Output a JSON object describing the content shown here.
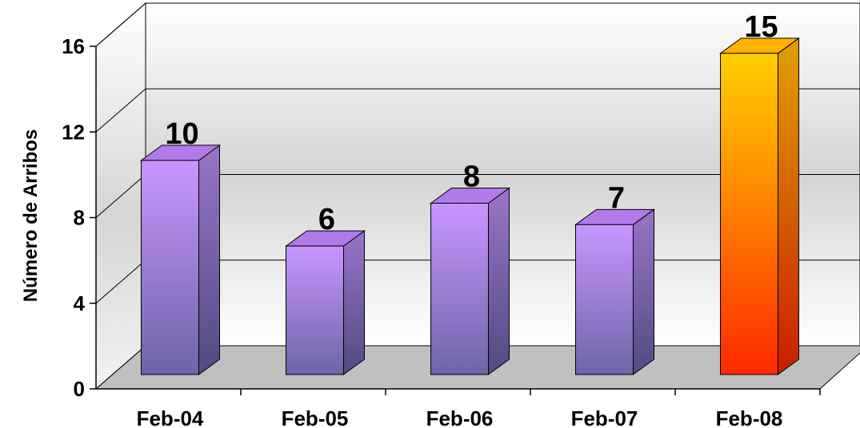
{
  "chart_data": {
    "type": "bar",
    "title": "",
    "xlabel": "",
    "ylabel": "Número de Arribos",
    "categories": [
      "Feb-04",
      "Feb-05",
      "Feb-06",
      "Feb-07",
      "Feb-08"
    ],
    "values": [
      10,
      6,
      8,
      7,
      15
    ],
    "data_labels": [
      "10",
      "6",
      "8",
      "7",
      "15"
    ],
    "ylim": [
      0,
      16
    ],
    "yticks": [
      0,
      4,
      8,
      12,
      16
    ],
    "ytick_labels": [
      "0",
      "4",
      "8",
      "12",
      "16"
    ],
    "grid": true,
    "style": "3d",
    "colors": {
      "bar_top": "#c796ff",
      "bar_bottom": "#6e64a8",
      "highlight_top": "#ffd000",
      "highlight_bottom": "#ff2a00",
      "highlight_index": 4,
      "floor": "#c0c0c0"
    }
  }
}
